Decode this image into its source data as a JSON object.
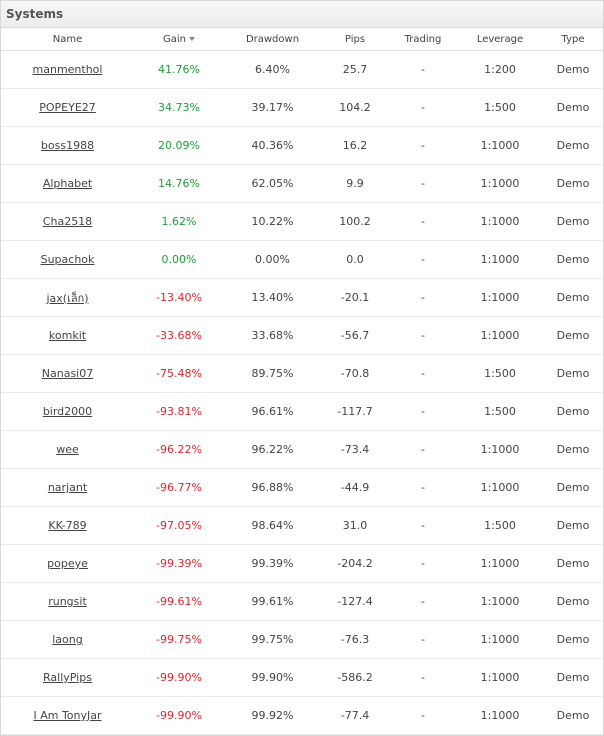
{
  "panel": {
    "title": "Systems"
  },
  "columns": {
    "name": "Name",
    "gain": "Gain",
    "drawdown": "Drawdown",
    "pips": "Pips",
    "trading": "Trading",
    "leverage": "Leverage",
    "type": "Type"
  },
  "colors": {
    "positive": "#1e9e3a",
    "negative": "#e0252b"
  },
  "rows": [
    {
      "name": "manmenthol",
      "gain": "41.76%",
      "drawdown": "6.40%",
      "pips": "25.7",
      "trading": "-",
      "leverage": "1:200",
      "type": "Demo",
      "trend": "pos"
    },
    {
      "name": "POPEYE27",
      "gain": "34.73%",
      "drawdown": "39.17%",
      "pips": "104.2",
      "trading": "-",
      "leverage": "1:500",
      "type": "Demo",
      "trend": "pos"
    },
    {
      "name": "boss1988",
      "gain": "20.09%",
      "drawdown": "40.36%",
      "pips": "16.2",
      "trading": "-",
      "leverage": "1:1000",
      "type": "Demo",
      "trend": "pos"
    },
    {
      "name": "Alphabet",
      "gain": "14.76%",
      "drawdown": "62.05%",
      "pips": "9.9",
      "trading": "-",
      "leverage": "1:1000",
      "type": "Demo",
      "trend": "pos"
    },
    {
      "name": "Cha2518",
      "gain": "1.62%",
      "drawdown": "10.22%",
      "pips": "100.2",
      "trading": "-",
      "leverage": "1:1000",
      "type": "Demo",
      "trend": "pos"
    },
    {
      "name": "Supachok",
      "gain": "0.00%",
      "drawdown": "0.00%",
      "pips": "0.0",
      "trading": "-",
      "leverage": "1:1000",
      "type": "Demo",
      "trend": "pos"
    },
    {
      "name": "jax(เล็ก)",
      "gain": "-13.40%",
      "drawdown": "13.40%",
      "pips": "-20.1",
      "trading": "-",
      "leverage": "1:1000",
      "type": "Demo",
      "trend": "neg"
    },
    {
      "name": "komkit",
      "gain": "-33.68%",
      "drawdown": "33.68%",
      "pips": "-56.7",
      "trading": "-",
      "leverage": "1:1000",
      "type": "Demo",
      "trend": "neg"
    },
    {
      "name": "Nanasi07",
      "gain": "-75.48%",
      "drawdown": "89.75%",
      "pips": "-70.8",
      "trading": "-",
      "leverage": "1:500",
      "type": "Demo",
      "trend": "neg"
    },
    {
      "name": "bird2000",
      "gain": "-93.81%",
      "drawdown": "96.61%",
      "pips": "-117.7",
      "trading": "-",
      "leverage": "1:500",
      "type": "Demo",
      "trend": "neg"
    },
    {
      "name": "wee",
      "gain": "-96.22%",
      "drawdown": "96.22%",
      "pips": "-73.4",
      "trading": "-",
      "leverage": "1:1000",
      "type": "Demo",
      "trend": "neg"
    },
    {
      "name": "narjant",
      "gain": "-96.77%",
      "drawdown": "96.88%",
      "pips": "-44.9",
      "trading": "-",
      "leverage": "1:1000",
      "type": "Demo",
      "trend": "neg"
    },
    {
      "name": "KK-789",
      "gain": "-97.05%",
      "drawdown": "98.64%",
      "pips": "31.0",
      "trading": "-",
      "leverage": "1:500",
      "type": "Demo",
      "trend": "neg"
    },
    {
      "name": "popeye",
      "gain": "-99.39%",
      "drawdown": "99.39%",
      "pips": "-204.2",
      "trading": "-",
      "leverage": "1:1000",
      "type": "Demo",
      "trend": "neg"
    },
    {
      "name": "rungsit",
      "gain": "-99.61%",
      "drawdown": "99.61%",
      "pips": "-127.4",
      "trading": "-",
      "leverage": "1:1000",
      "type": "Demo",
      "trend": "neg"
    },
    {
      "name": "laong",
      "gain": "-99.75%",
      "drawdown": "99.75%",
      "pips": "-76.3",
      "trading": "-",
      "leverage": "1:1000",
      "type": "Demo",
      "trend": "neg"
    },
    {
      "name": "RallyPips",
      "gain": "-99.90%",
      "drawdown": "99.90%",
      "pips": "-586.2",
      "trading": "-",
      "leverage": "1:1000",
      "type": "Demo",
      "trend": "neg"
    },
    {
      "name": "I Am TonyJar",
      "gain": "-99.90%",
      "drawdown": "99.92%",
      "pips": "-77.4",
      "trading": "-",
      "leverage": "1:1000",
      "type": "Demo",
      "trend": "neg"
    }
  ]
}
